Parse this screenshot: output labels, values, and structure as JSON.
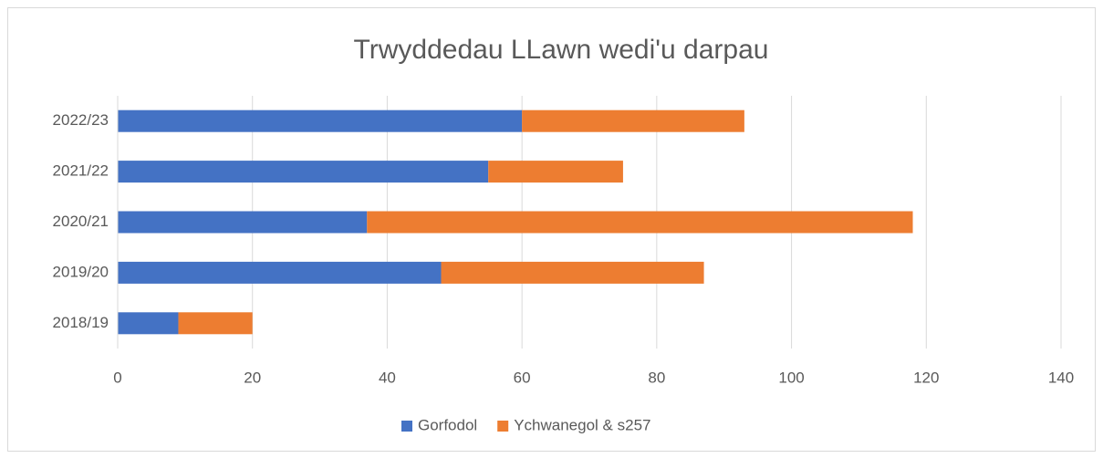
{
  "chart_data": {
    "type": "stacked_bar_horizontal",
    "title": "Trwyddedau LLawn wedi'u darpau",
    "categories": [
      "2018/19",
      "2019/20",
      "2020/21",
      "2021/22",
      "2022/23"
    ],
    "series": [
      {
        "name": "Gorfodol",
        "color": "#4472c4",
        "values": [
          9,
          48,
          37,
          55,
          60
        ]
      },
      {
        "name": "Ychwanegol & s257",
        "color": "#ed7d31",
        "values": [
          11,
          39,
          81,
          20,
          33
        ]
      }
    ],
    "xlim": [
      0,
      140
    ],
    "xticks": [
      0,
      20,
      40,
      60,
      80,
      100,
      120,
      140
    ],
    "grid": true,
    "legend": "bottom"
  }
}
